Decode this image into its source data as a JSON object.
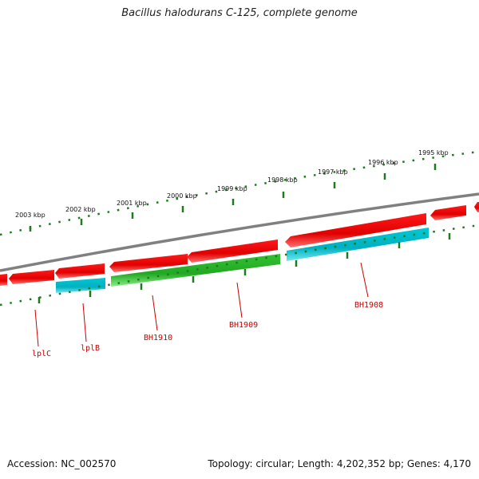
{
  "title": "Bacillus halodurans C-125, complete genome",
  "footer": {
    "accession": "Accession: NC_002570",
    "summary": "Topology: circular; Length: 4,202,352 bp; Genes: 4,170"
  },
  "colors": {
    "forward_gene": "#e00000",
    "reverse_rna": "#00b8c8",
    "reverse_gene": "#2db82d",
    "backbone": "#808080",
    "ticks": "#1f7a1f",
    "label": "#cc0000"
  },
  "scale_labels": [
    "2003 kbp",
    "2002 kbp",
    "2001 kbp",
    "2000 kbp",
    "1999 kbp",
    "1998 kbp",
    "1997 kbp",
    "1996 kbp",
    "1995 kbp"
  ],
  "gene_labels": [
    "lplC",
    "lplB",
    "BH1910",
    "BH1909",
    "BH1908"
  ]
}
